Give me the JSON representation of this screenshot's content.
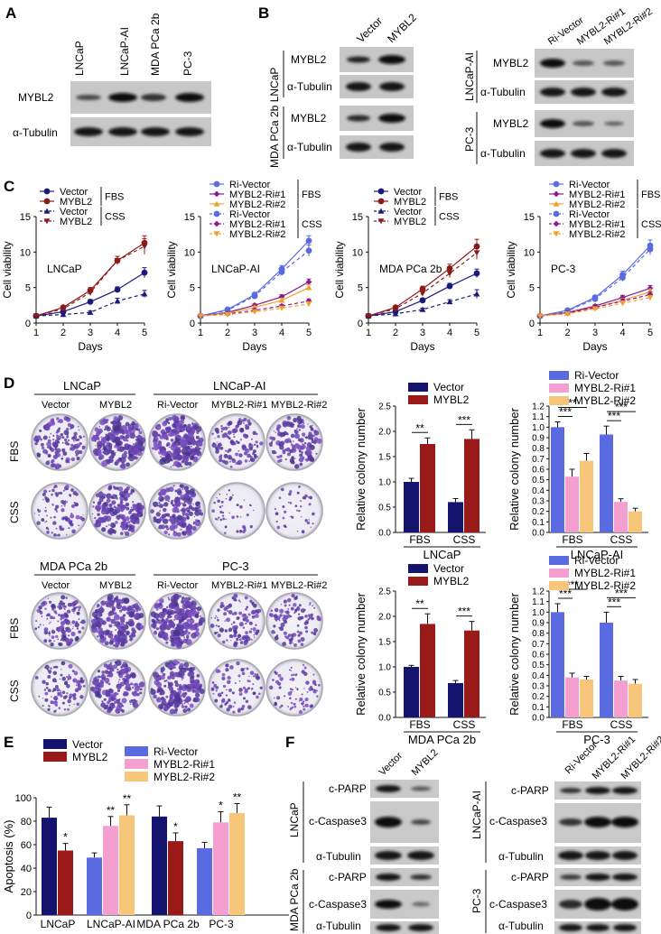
{
  "panels": {
    "A": "A",
    "B": "B",
    "C": "C",
    "D": "D",
    "E": "E",
    "F": "F"
  },
  "blots": {
    "A": {
      "lanes": [
        "LNCaP",
        "LNCaP-AI",
        "MDA PCa 2b",
        "PC-3"
      ],
      "rows": [
        "MYBL2",
        "α-Tubulin"
      ]
    },
    "B1": {
      "lanes": [
        "Vector",
        "MYBL2"
      ],
      "group": "MDA PCa 2b LNCaP",
      "rows": [
        "MYBL2",
        "α-Tubulin",
        "MYBL2",
        "α-Tubulin"
      ]
    },
    "B2": {
      "lanes": [
        "Ri-Vector",
        "MYBL2-Ri#1",
        "MYBL2-Ri#2"
      ],
      "groups": [
        "LNCaP-AI",
        "PC-3"
      ],
      "rows": [
        "MYBL2",
        "α-Tubulin",
        "MYBL2",
        "α-Tubulin"
      ]
    },
    "F1": {
      "lanes": [
        "Vector",
        "MYBL2"
      ],
      "groups": [
        "LNCaP",
        "MDA PCa 2b"
      ],
      "rows": [
        "c-PARP",
        "c-Caspase3",
        "α-Tubulin",
        "c-PARP",
        "c-Caspase3",
        "α-Tubulin"
      ]
    },
    "F2": {
      "lanes": [
        "Ri-Vector",
        "MYBL2-Ri#1",
        "MYBL2-Ri#2"
      ],
      "groups": [
        "LNCaP-AI",
        "PC-3"
      ],
      "rows": [
        "c-PARP",
        "c-Caspase3",
        "α-Tubulin",
        "c-PARP",
        "c-Caspase3",
        "α-Tubulin"
      ]
    }
  },
  "colonies": {
    "top": {
      "groups": [
        "LNCaP",
        "LNCaP-AI"
      ],
      "cols": [
        "Vector",
        "MYBL2",
        "Ri-Vector",
        "MYBL2-Ri#1",
        "MYBL2-Ri#2"
      ],
      "rows": [
        "FBS",
        "CSS"
      ]
    },
    "bottom": {
      "groups": [
        "MDA PCa 2b",
        "PC-3"
      ],
      "cols": [
        "Vector",
        "MYBL2",
        "Ri-Vector",
        "MYBL2-Ri#1",
        "MYBL2-Ri#2"
      ],
      "rows": [
        "FBS",
        "CSS"
      ]
    }
  },
  "chart_data": [
    {
      "type": "line",
      "title": "LNCaP",
      "xlabel": "Days",
      "ylabel": "Cell viability",
      "x": [
        1,
        2,
        3,
        4,
        5
      ],
      "ylim": [
        0,
        15
      ],
      "yticks": [
        0,
        5,
        10,
        15
      ],
      "legend": {
        "FBS": "FBS",
        "CSS": "CSS"
      },
      "series": [
        {
          "name": "Vector",
          "group": "FBS",
          "color": "#1a1a7a",
          "dashed": false,
          "marker": "circle",
          "values": [
            1.0,
            1.6,
            3.0,
            4.7,
            7.1
          ],
          "err": [
            0.1,
            0.2,
            0.3,
            0.4,
            0.7
          ]
        },
        {
          "name": "MYBL2",
          "group": "FBS",
          "color": "#8b1a1a",
          "dashed": false,
          "marker": "circle",
          "values": [
            1.0,
            2.2,
            4.6,
            8.8,
            11.3
          ],
          "err": [
            0.1,
            0.2,
            0.4,
            0.6,
            1.0
          ]
        },
        {
          "name": "Vector",
          "group": "CSS",
          "color": "#1a1a7a",
          "dashed": true,
          "marker": "triangle",
          "values": [
            1.0,
            1.2,
            1.5,
            3.1,
            4.1
          ],
          "err": [
            0.1,
            0.1,
            0.2,
            0.4,
            0.5
          ]
        },
        {
          "name": "MYBL2",
          "group": "CSS",
          "color": "#8b1a1a",
          "dashed": true,
          "marker": "triangle-down",
          "values": [
            1.0,
            2.0,
            4.3,
            8.8,
            10.8
          ],
          "err": [
            0.1,
            0.2,
            0.4,
            0.6,
            1.1
          ]
        }
      ]
    },
    {
      "type": "line",
      "title": "LNCaP-AI",
      "xlabel": "Days",
      "ylabel": "Cell viability",
      "x": [
        1,
        2,
        3,
        4,
        5
      ],
      "ylim": [
        0,
        15
      ],
      "yticks": [
        0,
        5,
        10,
        15
      ],
      "legend": {
        "FBS": "FBS",
        "CSS": "CSS"
      },
      "series": [
        {
          "name": "Ri-Vector",
          "group": "FBS",
          "color": "#5a6ae0",
          "dashed": false,
          "marker": "circle",
          "values": [
            1.0,
            1.9,
            4.0,
            7.6,
            11.6
          ],
          "err": [
            0.1,
            0.2,
            0.3,
            0.5,
            0.7
          ]
        },
        {
          "name": "MYBL2-Ri#1",
          "group": "FBS",
          "color": "#8b1a8b",
          "dashed": false,
          "marker": "diamond",
          "values": [
            1.0,
            1.5,
            2.5,
            3.7,
            5.8
          ],
          "err": [
            0.1,
            0.1,
            0.2,
            0.3,
            0.4
          ]
        },
        {
          "name": "MYBL2-Ri#2",
          "group": "FBS",
          "color": "#f0a030",
          "dashed": false,
          "marker": "triangle",
          "values": [
            1.0,
            1.4,
            2.2,
            3.2,
            5.0
          ],
          "err": [
            0.1,
            0.1,
            0.2,
            0.3,
            0.4
          ]
        },
        {
          "name": "Ri-Vector",
          "group": "CSS",
          "color": "#5a6ae0",
          "dashed": true,
          "marker": "circle",
          "values": [
            1.0,
            1.8,
            3.8,
            7.2,
            10.2
          ],
          "err": [
            0.1,
            0.2,
            0.3,
            0.5,
            0.8
          ]
        },
        {
          "name": "MYBL2-Ri#1",
          "group": "CSS",
          "color": "#8b1a8b",
          "dashed": true,
          "marker": "diamond",
          "values": [
            1.0,
            1.3,
            1.8,
            2.4,
            3.1
          ],
          "err": [
            0.1,
            0.1,
            0.2,
            0.2,
            0.3
          ]
        },
        {
          "name": "MYBL2-Ri#2",
          "group": "CSS",
          "color": "#f0a030",
          "dashed": true,
          "marker": "triangle-down",
          "values": [
            1.0,
            1.2,
            1.6,
            2.1,
            2.7
          ],
          "err": [
            0.1,
            0.1,
            0.2,
            0.2,
            0.3
          ]
        }
      ]
    },
    {
      "type": "line",
      "title": "MDA PCa 2b",
      "xlabel": "Days",
      "ylabel": "Cell viability",
      "x": [
        1,
        2,
        3,
        4,
        5
      ],
      "ylim": [
        0,
        15
      ],
      "yticks": [
        0,
        5,
        10,
        15
      ],
      "legend": {
        "FBS": "FBS",
        "CSS": "CSS"
      },
      "series": [
        {
          "name": "Vector",
          "group": "FBS",
          "color": "#1a1a7a",
          "dashed": false,
          "marker": "circle",
          "values": [
            1.0,
            1.6,
            3.2,
            5.2,
            7.0
          ],
          "err": [
            0.1,
            0.2,
            0.3,
            0.4,
            0.6
          ]
        },
        {
          "name": "MYBL2",
          "group": "FBS",
          "color": "#8b1a1a",
          "dashed": false,
          "marker": "circle",
          "values": [
            1.0,
            2.2,
            4.8,
            7.7,
            10.8
          ],
          "err": [
            0.1,
            0.2,
            0.4,
            0.6,
            1.0
          ]
        },
        {
          "name": "Vector",
          "group": "CSS",
          "color": "#1a1a7a",
          "dashed": true,
          "marker": "triangle",
          "values": [
            1.0,
            1.3,
            1.9,
            3.0,
            4.1
          ],
          "err": [
            0.1,
            0.1,
            0.2,
            0.3,
            0.6
          ]
        },
        {
          "name": "MYBL2",
          "group": "CSS",
          "color": "#8b1a1a",
          "dashed": true,
          "marker": "triangle-down",
          "values": [
            1.0,
            2.0,
            4.2,
            7.0,
            9.9
          ],
          "err": [
            0.1,
            0.2,
            0.4,
            0.6,
            0.9
          ]
        }
      ]
    },
    {
      "type": "line",
      "title": "PC-3",
      "xlabel": "Days",
      "ylabel": "Cell viability",
      "x": [
        1,
        2,
        3,
        4,
        5
      ],
      "ylim": [
        0,
        15
      ],
      "yticks": [
        0,
        5,
        10,
        15
      ],
      "legend": {
        "FBS": "FBS",
        "CSS": "CSS"
      },
      "series": [
        {
          "name": "Ri-Vector",
          "group": "FBS",
          "color": "#5a6ae0",
          "dashed": false,
          "marker": "circle",
          "values": [
            1.0,
            1.8,
            3.6,
            6.8,
            10.9
          ],
          "err": [
            0.1,
            0.2,
            0.3,
            0.5,
            0.8
          ]
        },
        {
          "name": "MYBL2-Ri#1",
          "group": "FBS",
          "color": "#8b1a8b",
          "dashed": false,
          "marker": "diamond",
          "values": [
            1.0,
            1.5,
            2.4,
            3.6,
            4.9
          ],
          "err": [
            0.1,
            0.1,
            0.2,
            0.3,
            0.4
          ]
        },
        {
          "name": "MYBL2-Ri#2",
          "group": "FBS",
          "color": "#f0a030",
          "dashed": false,
          "marker": "triangle",
          "values": [
            1.0,
            1.4,
            2.2,
            3.2,
            4.4
          ],
          "err": [
            0.1,
            0.1,
            0.2,
            0.3,
            0.4
          ]
        },
        {
          "name": "Ri-Vector",
          "group": "CSS",
          "color": "#5a6ae0",
          "dashed": true,
          "marker": "circle",
          "values": [
            1.0,
            1.7,
            3.4,
            6.4,
            10.4
          ],
          "err": [
            0.1,
            0.2,
            0.3,
            0.5,
            0.8
          ]
        },
        {
          "name": "MYBL2-Ri#1",
          "group": "CSS",
          "color": "#8b1a8b",
          "dashed": true,
          "marker": "diamond",
          "values": [
            1.0,
            1.4,
            2.2,
            3.1,
            4.0
          ],
          "err": [
            0.1,
            0.1,
            0.2,
            0.3,
            0.4
          ]
        },
        {
          "name": "MYBL2-Ri#2",
          "group": "CSS",
          "color": "#f0a030",
          "dashed": true,
          "marker": "triangle-down",
          "values": [
            1.0,
            1.3,
            2.0,
            2.8,
            3.6
          ],
          "err": [
            0.1,
            0.1,
            0.2,
            0.3,
            0.3
          ]
        }
      ]
    },
    {
      "type": "bar",
      "title": "LNCaP",
      "ylabel": "Relative colony number",
      "categories": [
        "FBS",
        "CSS"
      ],
      "ylim": [
        0,
        2.5
      ],
      "yticks": [
        "0.0",
        "0.5",
        "1.0",
        "1.5",
        "2.0",
        "2.5"
      ],
      "series": [
        {
          "name": "Vector",
          "color": "#14146e",
          "values": [
            1.0,
            0.6
          ],
          "err": [
            0.07,
            0.07
          ]
        },
        {
          "name": "MYBL2",
          "color": "#9a1a1a",
          "values": [
            1.75,
            1.85
          ],
          "err": [
            0.12,
            0.18
          ]
        }
      ],
      "sig": [
        {
          "cat": 0,
          "label": "**"
        },
        {
          "cat": 1,
          "label": "***"
        }
      ]
    },
    {
      "type": "bar",
      "title": "LNCaP-AI",
      "ylabel": "Relative colony number",
      "categories": [
        "FBS",
        "CSS"
      ],
      "ylim": [
        0,
        1.2
      ],
      "yticks": [
        "0.0",
        "0.1",
        "0.2",
        "0.3",
        "0.4",
        "0.5",
        "0.6",
        "0.7",
        "0.8",
        "0.9",
        "1.0",
        "1.1",
        "1.2"
      ],
      "series": [
        {
          "name": "Ri-Vector",
          "color": "#5a6ae0",
          "values": [
            1.0,
            0.93
          ],
          "err": [
            0.05,
            0.08
          ]
        },
        {
          "name": "MYBL2-Ri#1",
          "color": "#f49fcf",
          "values": [
            0.53,
            0.29
          ],
          "err": [
            0.07,
            0.03
          ]
        },
        {
          "name": "MYBL2-Ri#2",
          "color": "#f8c67a",
          "values": [
            0.68,
            0.2
          ],
          "err": [
            0.07,
            0.03
          ]
        }
      ],
      "sig": [
        {
          "cat": 0,
          "pair": [
            0,
            1
          ],
          "label": "***",
          "level": 0
        },
        {
          "cat": 0,
          "pair": [
            0,
            2
          ],
          "label": "**",
          "level": 1
        },
        {
          "cat": 1,
          "pair": [
            0,
            1
          ],
          "label": "***",
          "level": 0
        },
        {
          "cat": 1,
          "pair": [
            0,
            2
          ],
          "label": "***",
          "level": 1
        }
      ]
    },
    {
      "type": "bar",
      "title": "MDA PCa 2b",
      "ylabel": "Relative colony number",
      "categories": [
        "FBS",
        "CSS"
      ],
      "ylim": [
        0,
        2.5
      ],
      "yticks": [
        "0.0",
        "0.5",
        "1.0",
        "1.5",
        "2.0",
        "2.5"
      ],
      "series": [
        {
          "name": "Vector",
          "color": "#14146e",
          "values": [
            1.0,
            0.68
          ],
          "err": [
            0.03,
            0.05
          ]
        },
        {
          "name": "MYBL2",
          "color": "#9a1a1a",
          "values": [
            1.85,
            1.72
          ],
          "err": [
            0.2,
            0.18
          ]
        }
      ],
      "sig": [
        {
          "cat": 0,
          "label": "**"
        },
        {
          "cat": 1,
          "label": "***"
        }
      ]
    },
    {
      "type": "bar",
      "title": "PC-3",
      "ylabel": "Relative colony number",
      "categories": [
        "FBS",
        "CSS"
      ],
      "ylim": [
        0,
        1.2
      ],
      "yticks": [
        "0.0",
        "0.1",
        "0.2",
        "0.3",
        "0.4",
        "0.5",
        "0.6",
        "0.7",
        "0.8",
        "0.9",
        "1.0",
        "1.1",
        "1.2"
      ],
      "series": [
        {
          "name": "Ri-Vector",
          "color": "#5a6ae0",
          "values": [
            1.0,
            0.9
          ],
          "err": [
            0.08,
            0.1
          ]
        },
        {
          "name": "MYBL2-Ri#1",
          "color": "#f49fcf",
          "values": [
            0.38,
            0.35
          ],
          "err": [
            0.04,
            0.04
          ]
        },
        {
          "name": "MYBL2-Ri#2",
          "color": "#f8c67a",
          "values": [
            0.36,
            0.32
          ],
          "err": [
            0.03,
            0.04
          ]
        }
      ],
      "sig": [
        {
          "cat": 0,
          "pair": [
            0,
            1
          ],
          "label": "***",
          "level": 0
        },
        {
          "cat": 0,
          "pair": [
            0,
            2
          ],
          "label": "***",
          "level": 1
        },
        {
          "cat": 1,
          "pair": [
            0,
            1
          ],
          "label": "***",
          "level": 0
        },
        {
          "cat": 1,
          "pair": [
            0,
            2
          ],
          "label": "***",
          "level": 1
        }
      ]
    },
    {
      "type": "bar",
      "title": "",
      "ylabel": "Apoptosis (%)",
      "categories": [
        "LNCaP",
        "LNCaP-AI",
        "MDA PCa 2b",
        "PC-3"
      ],
      "ylim": [
        0,
        100
      ],
      "yticks": [
        "0",
        "20",
        "40",
        "60",
        "80",
        "100"
      ],
      "legend": [
        {
          "name": "Vector",
          "color": "#14146e"
        },
        {
          "name": "MYBL2",
          "color": "#9a1a1a"
        },
        {
          "name": "Ri-Vector",
          "color": "#5a6ae0"
        },
        {
          "name": "MYBL2-Ri#1",
          "color": "#f49fcf"
        },
        {
          "name": "MYBL2-Ri#2",
          "color": "#f8c67a"
        }
      ],
      "bars": [
        {
          "cat": 0,
          "color": "#14146e",
          "value": 83,
          "err": 9,
          "sig": ""
        },
        {
          "cat": 0,
          "color": "#9a1a1a",
          "value": 55,
          "err": 6,
          "sig": "*"
        },
        {
          "cat": 1,
          "color": "#5a6ae0",
          "value": 49,
          "err": 4,
          "sig": ""
        },
        {
          "cat": 1,
          "color": "#f49fcf",
          "value": 76,
          "err": 8,
          "sig": "**"
        },
        {
          "cat": 1,
          "color": "#f8c67a",
          "value": 85,
          "err": 9,
          "sig": "**"
        },
        {
          "cat": 2,
          "color": "#14146e",
          "value": 84,
          "err": 9,
          "sig": ""
        },
        {
          "cat": 2,
          "color": "#9a1a1a",
          "value": 63,
          "err": 7,
          "sig": "*"
        },
        {
          "cat": 3,
          "color": "#5a6ae0",
          "value": 57,
          "err": 5,
          "sig": ""
        },
        {
          "cat": 3,
          "color": "#f49fcf",
          "value": 79,
          "err": 9,
          "sig": "*"
        },
        {
          "cat": 3,
          "color": "#f8c67a",
          "value": 87,
          "err": 8,
          "sig": "**"
        }
      ]
    }
  ]
}
